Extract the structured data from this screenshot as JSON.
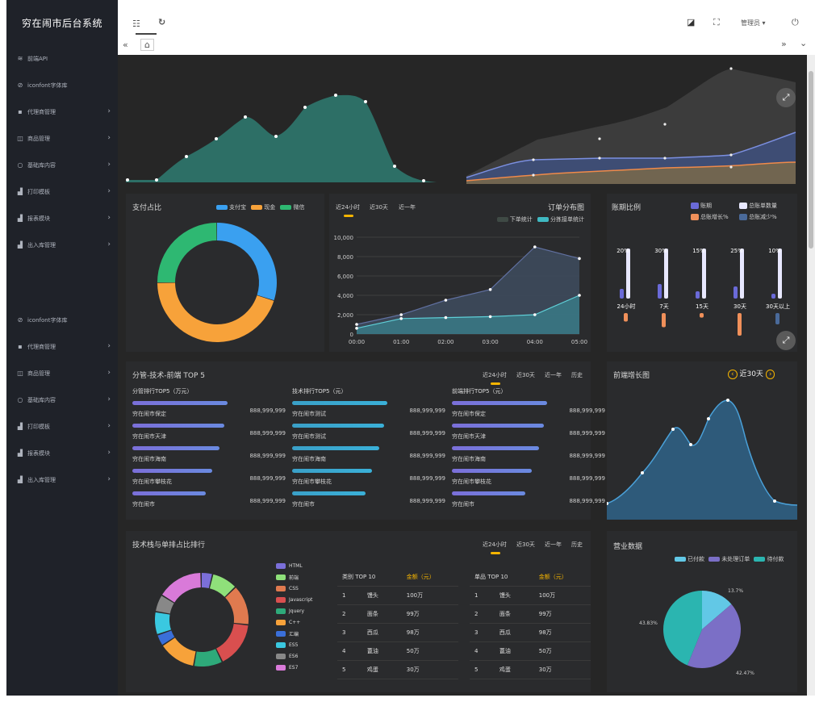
{
  "app": {
    "title": "穷在闹市后台系统"
  },
  "sidebar": {
    "items": [
      {
        "label": "前端API",
        "icon": "wifi-icon",
        "arrow": false
      },
      {
        "label": "iconfont字体库",
        "icon": "link-icon",
        "arrow": false
      },
      {
        "label": "代理商管理",
        "icon": "square-icon",
        "arrow": true
      },
      {
        "label": "商品管理",
        "icon": "bag-icon",
        "arrow": true
      },
      {
        "label": "基础库内容",
        "icon": "circle-icon",
        "arrow": true
      },
      {
        "label": "打印模板",
        "icon": "bar-chart-icon",
        "arrow": true
      },
      {
        "label": "报表模块",
        "icon": "bar-chart-icon",
        "arrow": true
      },
      {
        "label": "出入库管理",
        "icon": "bar-chart-icon",
        "arrow": true
      }
    ],
    "items2": [
      {
        "label": "iconfont字体库",
        "icon": "link-icon",
        "arrow": false
      },
      {
        "label": "代理商管理",
        "icon": "square-icon",
        "arrow": true
      },
      {
        "label": "商品管理",
        "icon": "bag-icon",
        "arrow": true
      },
      {
        "label": "基础库内容",
        "icon": "circle-icon",
        "arrow": true
      },
      {
        "label": "打印模板",
        "icon": "bar-chart-icon",
        "arrow": true
      },
      {
        "label": "报表模块",
        "icon": "bar-chart-icon",
        "arrow": true
      },
      {
        "label": "出入库管理",
        "icon": "bar-chart-icon",
        "arrow": true
      }
    ]
  },
  "header": {
    "user": "管理员 ▾"
  },
  "payment": {
    "title": "支付占比",
    "legend": [
      "支付宝",
      "现金",
      "微信"
    ],
    "colors": [
      "#3aa0f0",
      "#f7a23a",
      "#2eb872"
    ],
    "values": [
      30,
      45,
      25
    ]
  },
  "order": {
    "tabs": [
      "近24小时",
      "近30天",
      "近一年"
    ],
    "title": "订单分布图",
    "legend": [
      "下单统计",
      "分拣接单统计"
    ],
    "chart_data": {
      "type": "area",
      "categories": [
        "00:00",
        "01:00",
        "02:00",
        "03:00",
        "04:00",
        "05:00"
      ],
      "yticks": [
        "10,000",
        "8,000",
        "6,000",
        "4,000",
        "2,000",
        "0"
      ],
      "ylim": [
        0,
        10000
      ],
      "series": [
        {
          "name": "下单统计",
          "values": [
            1000,
            2000,
            3500,
            4600,
            9000,
            7800
          ]
        },
        {
          "name": "分拣接单统计",
          "values": [
            600,
            1600,
            1700,
            1800,
            2000,
            4000
          ]
        }
      ]
    }
  },
  "account": {
    "title": "账期比例",
    "legend": [
      "账期",
      "总账单数量",
      "总账增长%",
      "总账减少%"
    ],
    "chart_data": {
      "type": "bar",
      "categories": [
        "24小时",
        "7天",
        "15天",
        "30天",
        "30天以上"
      ],
      "percent_labels": [
        "20%",
        "30%",
        "15%",
        "25%",
        "10%"
      ],
      "series": [
        {
          "name": "账期",
          "values": [
            20,
            30,
            15,
            25,
            10
          ]
        },
        {
          "name": "总账单数量",
          "values": [
            100,
            100,
            100,
            100,
            100
          ]
        },
        {
          "name": "总账增长%",
          "values": [
            15,
            25,
            8,
            40,
            0
          ]
        },
        {
          "name": "总账减少%",
          "values": [
            0,
            0,
            0,
            0,
            20
          ]
        }
      ]
    }
  },
  "top5": {
    "title": "分管-技术-前端 TOP 5",
    "tabs": [
      "近24小时",
      "近30天",
      "近一年",
      "历史"
    ],
    "columns": [
      {
        "title": "分管排行TOP5（万元）",
        "names": [
          "穷在闹市保定",
          "穷在闹市天津",
          "穷在闹市海南",
          "穷在闹市攀枝花",
          "穷在闹市"
        ],
        "value": "888,999,999",
        "color": "#7b6fd9"
      },
      {
        "title": "技术排行TOP5（元）",
        "names": [
          "穷在闹市测试",
          "穷在闹市测试",
          "穷在闹市海南",
          "穷在闹市攀枝花",
          "穷在闹市"
        ],
        "value": "888,999,999",
        "color": "#3aa0c8"
      },
      {
        "title": "前端排行TOP5（元）",
        "names": [
          "穷在闹市保定",
          "穷在闹市天津",
          "穷在闹市海南",
          "穷在闹市攀枝花",
          "穷在闹市"
        ],
        "value": "888,999,999",
        "color": "#7b6fd9"
      }
    ]
  },
  "growth": {
    "title": "前端增长图",
    "period": "近30天"
  },
  "tech": {
    "title": "技术栈与单排占比排行",
    "tabs": [
      "近24小时",
      "近30天",
      "近一年",
      "历史"
    ],
    "legend": [
      "HTML",
      "前端",
      "CSS",
      "Javascript",
      "Jquery",
      "C++",
      "汇编",
      "ES5",
      "ES6",
      "ES7"
    ],
    "colors": [
      "#7b6fd9",
      "#8fe07a",
      "#e07a4f",
      "#d94f4f",
      "#2eaa7a",
      "#f7a23a",
      "#3a6fd9",
      "#3ac8e0",
      "#888888",
      "#d97ad9"
    ],
    "values": [
      4,
      9,
      14,
      16,
      10,
      13,
      4,
      8,
      6,
      16
    ]
  },
  "table1": {
    "headers": [
      "类别 TOP 10",
      "金额（元）"
    ],
    "rows": [
      [
        "1",
        "馒头",
        "100万"
      ],
      [
        "2",
        "面条",
        "99万"
      ],
      [
        "3",
        "西瓜",
        "98万"
      ],
      [
        "4",
        "蓖油",
        "50万"
      ],
      [
        "5",
        "鸡蛋",
        "30万"
      ]
    ]
  },
  "table2": {
    "headers": [
      "单品 TOP 10",
      "金额（元）"
    ],
    "rows": [
      [
        "1",
        "馒头",
        "100万"
      ],
      [
        "2",
        "面条",
        "99万"
      ],
      [
        "3",
        "西瓜",
        "98万"
      ],
      [
        "4",
        "蓖油",
        "50万"
      ],
      [
        "5",
        "鸡蛋",
        "30万"
      ]
    ]
  },
  "business": {
    "title": "营业数据",
    "legend": [
      "已付款",
      "未处理订单",
      "待付款"
    ],
    "colors": [
      "#62c8e6",
      "#7b6fc6",
      "#2bb5b0"
    ],
    "values": [
      13.7,
      42.47,
      43.83
    ],
    "labels": [
      "13.7%",
      "42.47%",
      "43.83%"
    ]
  }
}
